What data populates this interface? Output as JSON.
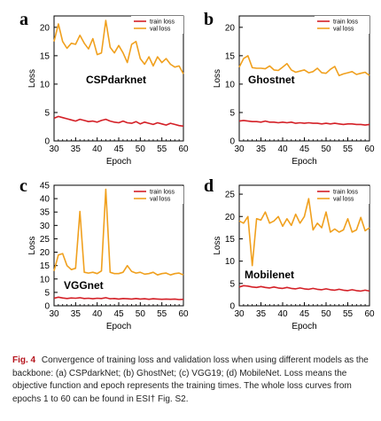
{
  "figure": {
    "caption_label": "Fig. 4",
    "caption_text": "Convergence of training loss and validation loss when using different models as the backbone: (a) CSPdarkNet; (b) GhostNet; (c) VGG19; (d) MobileNet. Loss means the objective function and epoch represents the training times. The whole loss curves from epochs 1 to 60 can be found in ESI† Fig. S2."
  },
  "colors": {
    "train": "#d42027",
    "val": "#f0a01e"
  },
  "chart_data": [
    {
      "type": "line",
      "panel": "a",
      "title": "CSPdarknet",
      "xlabel": "Epoch",
      "ylabel": "Loss",
      "xlim": [
        30,
        60
      ],
      "ylim": [
        0,
        22
      ],
      "xticks": [
        "30",
        "35",
        "40",
        "45",
        "50",
        "55",
        "60"
      ],
      "yticks": [
        "0",
        "5",
        "10",
        "15",
        "20"
      ],
      "legend": "top-right",
      "x": [
        30,
        31,
        32,
        33,
        34,
        35,
        36,
        37,
        38,
        39,
        40,
        41,
        42,
        43,
        44,
        45,
        46,
        47,
        48,
        49,
        50,
        51,
        52,
        53,
        54,
        55,
        56,
        57,
        58,
        59,
        60
      ],
      "series": [
        {
          "name": "train loss",
          "values": [
            4.0,
            4.3,
            4.1,
            3.9,
            3.7,
            3.5,
            3.8,
            3.6,
            3.4,
            3.5,
            3.3,
            3.6,
            3.8,
            3.5,
            3.3,
            3.2,
            3.5,
            3.2,
            3.1,
            3.4,
            3.0,
            3.3,
            3.1,
            2.9,
            3.2,
            3.0,
            2.8,
            3.1,
            2.9,
            2.7,
            2.6
          ]
        },
        {
          "name": "val loss",
          "values": [
            17.5,
            20.6,
            17.5,
            16.3,
            17.2,
            17.0,
            18.6,
            17.2,
            16.2,
            18.0,
            15.2,
            15.5,
            21.2,
            16.5,
            15.5,
            16.8,
            15.5,
            13.8,
            17.0,
            17.5,
            14.5,
            13.5,
            14.8,
            13.2,
            14.8,
            13.8,
            14.5,
            13.5,
            13.0,
            13.2,
            11.8
          ]
        }
      ]
    },
    {
      "type": "line",
      "panel": "b",
      "title": "Ghostnet",
      "xlabel": "Epoch",
      "ylabel": "Loss",
      "xlim": [
        30,
        60
      ],
      "ylim": [
        0,
        22
      ],
      "xticks": [
        "30",
        "35",
        "40",
        "45",
        "50",
        "55",
        "60"
      ],
      "yticks": [
        "0",
        "5",
        "10",
        "15",
        "20"
      ],
      "legend": "top-right",
      "x": [
        30,
        31,
        32,
        33,
        34,
        35,
        36,
        37,
        38,
        39,
        40,
        41,
        42,
        43,
        44,
        45,
        46,
        47,
        48,
        49,
        50,
        51,
        52,
        53,
        54,
        55,
        56,
        57,
        58,
        59,
        60
      ],
      "series": [
        {
          "name": "train loss",
          "values": [
            3.5,
            3.6,
            3.5,
            3.4,
            3.4,
            3.3,
            3.5,
            3.3,
            3.3,
            3.2,
            3.3,
            3.2,
            3.3,
            3.1,
            3.2,
            3.1,
            3.2,
            3.1,
            3.1,
            3.0,
            3.1,
            3.0,
            3.1,
            3.0,
            2.9,
            3.0,
            3.0,
            2.9,
            2.9,
            2.8,
            2.9
          ]
        },
        {
          "name": "val loss",
          "values": [
            13.0,
            14.5,
            15.0,
            12.9,
            12.8,
            12.8,
            12.7,
            13.2,
            12.5,
            12.4,
            13.0,
            13.6,
            12.5,
            12.1,
            12.3,
            12.5,
            12.0,
            12.2,
            12.8,
            12.0,
            11.9,
            12.6,
            13.1,
            11.5,
            11.8,
            12.0,
            12.2,
            11.7,
            11.9,
            12.1,
            11.5
          ]
        }
      ]
    },
    {
      "type": "line",
      "panel": "c",
      "title": "VGGnet",
      "xlabel": "Epoch",
      "ylabel": "Loss",
      "xlim": [
        30,
        60
      ],
      "ylim": [
        0,
        45
      ],
      "xticks": [
        "30",
        "35",
        "40",
        "45",
        "50",
        "55",
        "60"
      ],
      "yticks": [
        "0",
        "5",
        "10",
        "15",
        "20",
        "25",
        "30",
        "35",
        "40",
        "45"
      ],
      "legend": "top-right",
      "x": [
        30,
        31,
        32,
        33,
        34,
        35,
        36,
        37,
        38,
        39,
        40,
        41,
        42,
        43,
        44,
        45,
        46,
        47,
        48,
        49,
        50,
        51,
        52,
        53,
        54,
        55,
        56,
        57,
        58,
        59,
        60
      ],
      "series": [
        {
          "name": "train loss",
          "values": [
            2.8,
            3.2,
            2.9,
            2.7,
            2.9,
            2.8,
            3.0,
            2.7,
            2.8,
            2.6,
            2.8,
            2.7,
            3.0,
            2.6,
            2.7,
            2.5,
            2.7,
            2.6,
            2.5,
            2.7,
            2.5,
            2.6,
            2.4,
            2.6,
            2.5,
            2.4,
            2.5,
            2.4,
            2.5,
            2.3,
            2.4
          ]
        },
        {
          "name": "val loss",
          "values": [
            13.0,
            19.0,
            19.5,
            15.0,
            13.5,
            14.0,
            35.2,
            12.5,
            12.2,
            12.5,
            12.0,
            13.0,
            43.5,
            12.5,
            12.0,
            12.0,
            12.5,
            15.0,
            12.8,
            12.2,
            12.5,
            11.8,
            12.0,
            12.5,
            11.5,
            12.0,
            12.2,
            11.5,
            12.0,
            12.2,
            11.5
          ]
        }
      ]
    },
    {
      "type": "line",
      "panel": "d",
      "title": "Mobilenet",
      "xlabel": "Epoch",
      "ylabel": "Loss",
      "xlim": [
        30,
        60
      ],
      "ylim": [
        0,
        27
      ],
      "xticks": [
        "30",
        "35",
        "40",
        "45",
        "50",
        "55",
        "60"
      ],
      "yticks": [
        "0",
        "5",
        "10",
        "15",
        "20",
        "25"
      ],
      "legend": "top-right",
      "x": [
        30,
        31,
        32,
        33,
        34,
        35,
        36,
        37,
        38,
        39,
        40,
        41,
        42,
        43,
        44,
        45,
        46,
        47,
        48,
        49,
        50,
        51,
        52,
        53,
        54,
        55,
        56,
        57,
        58,
        59,
        60
      ],
      "series": [
        {
          "name": "train loss",
          "values": [
            4.2,
            4.5,
            4.4,
            4.2,
            4.1,
            4.3,
            4.1,
            4.0,
            4.2,
            4.0,
            3.9,
            4.1,
            3.9,
            3.8,
            4.0,
            3.8,
            3.7,
            3.9,
            3.7,
            3.6,
            3.8,
            3.6,
            3.5,
            3.7,
            3.5,
            3.4,
            3.6,
            3.4,
            3.3,
            3.5,
            3.3
          ]
        },
        {
          "name": "val loss",
          "values": [
            19.0,
            18.5,
            20.0,
            9.0,
            19.5,
            19.2,
            21.0,
            18.5,
            19.0,
            20.0,
            17.8,
            19.5,
            18.0,
            20.5,
            18.5,
            20.0,
            24.0,
            17.0,
            18.5,
            17.5,
            21.0,
            16.5,
            17.2,
            16.5,
            17.0,
            19.5,
            16.5,
            17.0,
            19.8,
            16.8,
            17.5
          ]
        }
      ]
    }
  ]
}
